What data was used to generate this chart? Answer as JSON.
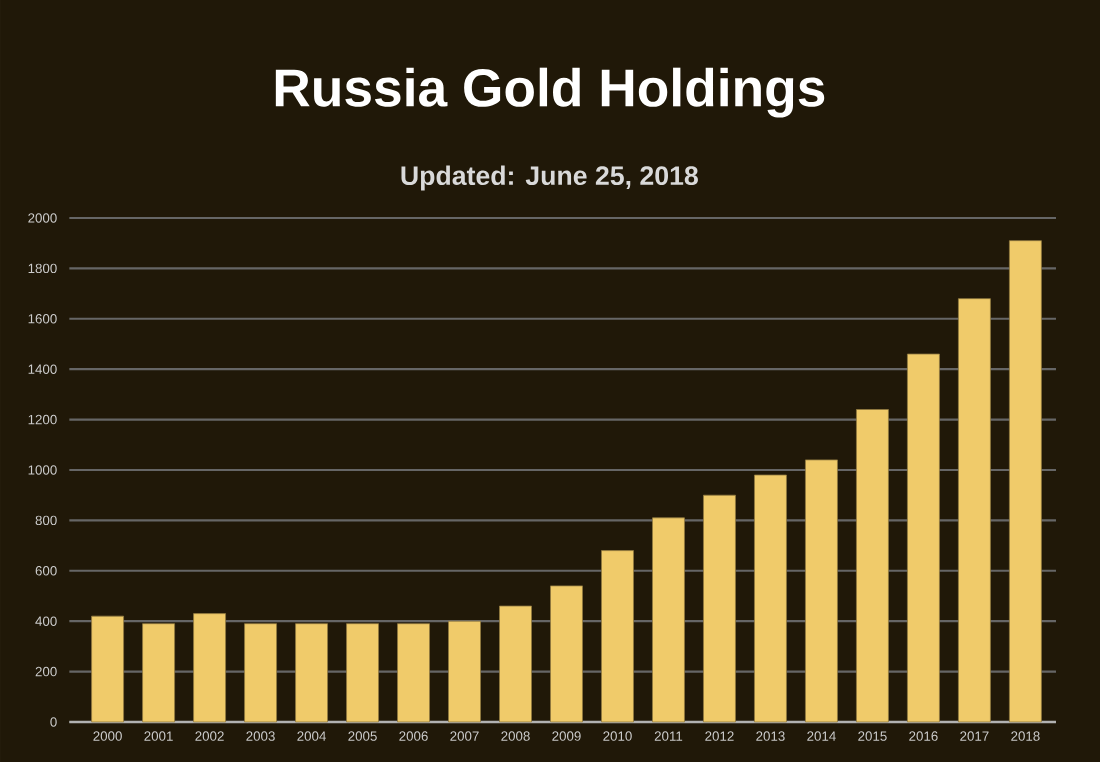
{
  "chart_data": {
    "type": "bar",
    "title": "Russia Gold Holdings",
    "subtitle": "Updated: June 25, 2018",
    "categories": [
      "2000",
      "2001",
      "2002",
      "2003",
      "2004",
      "2005",
      "2006",
      "2007",
      "2008",
      "2009",
      "2010",
      "2011",
      "2012",
      "2013",
      "2014",
      "2015",
      "2016",
      "2017",
      "2018"
    ],
    "values": [
      420,
      390,
      430,
      390,
      390,
      390,
      390,
      400,
      460,
      540,
      680,
      810,
      900,
      980,
      1040,
      1240,
      1460,
      1680,
      1910
    ],
    "color": "#f0cb6a",
    "ylim": [
      0,
      2000
    ],
    "yticks": [
      0,
      200,
      400,
      600,
      800,
      1000,
      1200,
      1400,
      1600,
      1800,
      2000
    ],
    "grid": "y"
  }
}
